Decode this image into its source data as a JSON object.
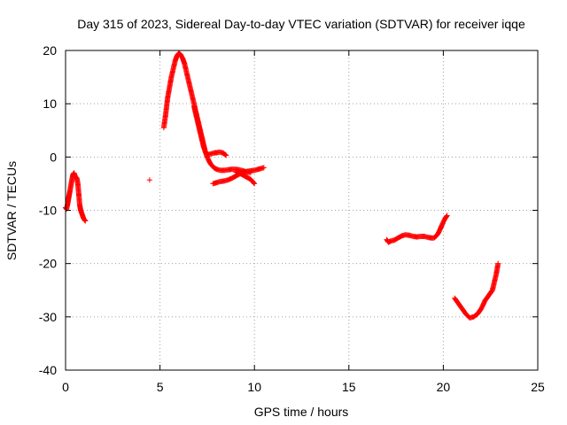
{
  "chart_data": {
    "type": "scatter",
    "title": "Day 315 of 2023, Sidereal Day-to-day VTEC variation (SDTVAR) for receiver iqqe",
    "xlabel": "GPS time / hours",
    "ylabel": "SDTVAR / TECUs",
    "xlim": [
      0,
      25
    ],
    "ylim": [
      -40,
      20
    ],
    "x_ticks": [
      0,
      5,
      10,
      15,
      20,
      25
    ],
    "y_ticks": [
      -40,
      -30,
      -20,
      -10,
      0,
      10,
      20
    ],
    "grid": true,
    "marker": "+",
    "series": [
      {
        "name": "SDTVAR",
        "color": "#ff0000",
        "segments": [
          [
            [
              0.0,
              -9.5
            ],
            [
              0.05,
              -9.8
            ],
            [
              0.1,
              -9.0
            ],
            [
              0.15,
              -8.0
            ],
            [
              0.2,
              -7.0
            ],
            [
              0.25,
              -6.0
            ],
            [
              0.3,
              -5.0
            ],
            [
              0.35,
              -4.0
            ],
            [
              0.4,
              -3.2
            ],
            [
              0.45,
              -3.0
            ],
            [
              0.5,
              -3.5
            ],
            [
              0.55,
              -3.8
            ],
            [
              0.6,
              -4.0
            ],
            [
              0.65,
              -5.0
            ],
            [
              0.7,
              -7.0
            ],
            [
              0.75,
              -9.0
            ],
            [
              0.8,
              -10.0
            ],
            [
              0.85,
              -10.5
            ],
            [
              0.9,
              -11.0
            ],
            [
              0.95,
              -11.5
            ],
            [
              1.0,
              -11.8
            ],
            [
              1.05,
              -12.0
            ]
          ],
          [
            [
              4.45,
              -4.3
            ]
          ],
          [
            [
              5.2,
              5.5
            ],
            [
              5.3,
              8.0
            ],
            [
              5.4,
              11.0
            ],
            [
              5.5,
              13.0
            ],
            [
              5.6,
              15.0
            ],
            [
              5.7,
              16.5
            ],
            [
              5.8,
              18.0
            ],
            [
              5.9,
              19.0
            ],
            [
              6.0,
              19.5
            ],
            [
              6.1,
              19.2
            ],
            [
              6.2,
              18.5
            ],
            [
              6.3,
              17.5
            ],
            [
              6.4,
              16.0
            ],
            [
              6.5,
              14.5
            ],
            [
              6.6,
              13.0
            ],
            [
              6.7,
              11.5
            ],
            [
              6.8,
              10.0
            ],
            [
              6.9,
              8.5
            ],
            [
              7.0,
              7.0
            ],
            [
              7.1,
              5.5
            ],
            [
              7.2,
              4.0
            ],
            [
              7.3,
              2.5
            ],
            [
              7.4,
              1.0
            ],
            [
              7.5,
              0.0
            ],
            [
              7.6,
              -0.8
            ],
            [
              7.7,
              -1.4
            ],
            [
              7.8,
              -1.8
            ],
            [
              7.9,
              -2.1
            ],
            [
              8.0,
              -2.3
            ],
            [
              8.2,
              -2.5
            ],
            [
              8.4,
              -2.5
            ],
            [
              8.6,
              -2.4
            ],
            [
              8.8,
              -2.3
            ],
            [
              9.0,
              -2.3
            ],
            [
              9.2,
              -2.4
            ],
            [
              9.4,
              -2.6
            ],
            [
              9.6,
              -2.8
            ],
            [
              9.8,
              -2.9
            ]
          ],
          [
            [
              6.8,
              9.5
            ],
            [
              6.9,
              8.0
            ],
            [
              7.0,
              6.5
            ],
            [
              7.1,
              5.0
            ],
            [
              7.2,
              3.5
            ],
            [
              7.3,
              2.0
            ],
            [
              7.4,
              1.0
            ],
            [
              7.5,
              0.5
            ],
            [
              7.6,
              0.5
            ],
            [
              7.7,
              0.6
            ],
            [
              7.8,
              0.7
            ],
            [
              7.9,
              0.8
            ],
            [
              8.0,
              0.8
            ],
            [
              8.1,
              0.9
            ],
            [
              8.2,
              0.9
            ],
            [
              8.3,
              0.8
            ],
            [
              8.4,
              0.6
            ],
            [
              8.5,
              0.3
            ]
          ],
          [
            [
              7.8,
              -5.0
            ],
            [
              8.0,
              -4.8
            ],
            [
              8.2,
              -4.6
            ],
            [
              8.4,
              -4.5
            ],
            [
              8.6,
              -4.3
            ],
            [
              8.8,
              -4.0
            ],
            [
              9.0,
              -3.6
            ],
            [
              9.2,
              -3.2
            ],
            [
              9.4,
              -2.9
            ],
            [
              9.6,
              -2.7
            ],
            [
              9.8,
              -2.6
            ],
            [
              10.0,
              -2.5
            ],
            [
              10.2,
              -2.3
            ],
            [
              10.4,
              -2.1
            ],
            [
              10.5,
              -2.0
            ]
          ],
          [
            [
              9.0,
              -2.8
            ],
            [
              9.2,
              -3.0
            ],
            [
              9.4,
              -3.4
            ],
            [
              9.6,
              -3.8
            ],
            [
              9.8,
              -4.2
            ],
            [
              9.9,
              -4.6
            ],
            [
              10.0,
              -5.0
            ]
          ],
          [
            [
              17.0,
              -15.5
            ],
            [
              17.1,
              -16.0
            ],
            [
              17.2,
              -15.8
            ],
            [
              17.4,
              -15.6
            ],
            [
              17.6,
              -15.2
            ],
            [
              17.8,
              -14.8
            ],
            [
              18.0,
              -14.6
            ],
            [
              18.2,
              -14.7
            ],
            [
              18.4,
              -14.9
            ],
            [
              18.6,
              -15.0
            ],
            [
              18.8,
              -14.9
            ],
            [
              19.0,
              -14.9
            ],
            [
              19.2,
              -15.1
            ],
            [
              19.4,
              -15.2
            ],
            [
              19.5,
              -15.2
            ],
            [
              19.6,
              -14.9
            ],
            [
              19.7,
              -14.5
            ],
            [
              19.8,
              -13.8
            ],
            [
              19.9,
              -13.0
            ],
            [
              20.0,
              -12.2
            ],
            [
              20.1,
              -11.5
            ],
            [
              20.2,
              -11.0
            ]
          ],
          [
            [
              20.6,
              -26.5
            ],
            [
              20.8,
              -27.5
            ],
            [
              21.0,
              -28.5
            ],
            [
              21.2,
              -29.5
            ],
            [
              21.4,
              -30.2
            ],
            [
              21.6,
              -30.0
            ],
            [
              21.8,
              -29.5
            ],
            [
              21.9,
              -29.0
            ],
            [
              22.0,
              -28.5
            ],
            [
              22.1,
              -27.8
            ],
            [
              22.2,
              -27.0
            ],
            [
              22.3,
              -26.5
            ],
            [
              22.4,
              -26.0
            ],
            [
              22.5,
              -25.5
            ],
            [
              22.6,
              -25.0
            ],
            [
              22.7,
              -23.5
            ],
            [
              22.8,
              -22.0
            ],
            [
              22.9,
              -20.0
            ]
          ]
        ]
      }
    ]
  }
}
